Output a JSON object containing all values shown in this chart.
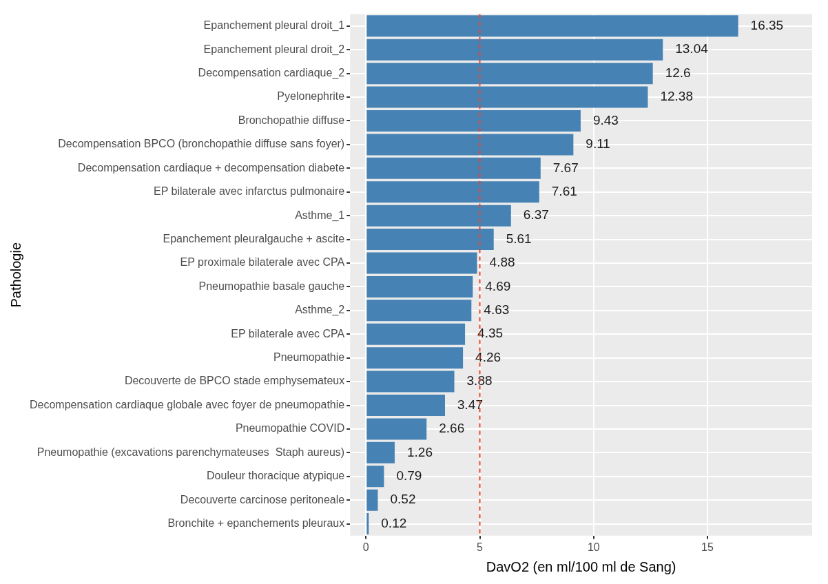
{
  "chart_data": {
    "type": "bar",
    "orientation": "horizontal",
    "xlabel": "DavO2 (en ml/100 ml de Sang)",
    "ylabel": "Pathologie",
    "categories": [
      "Epanchement pleural droit_1",
      "Epanchement pleural droit_2",
      "Decompensation cardiaque_2",
      "Pyelonephrite",
      "Bronchopathie diffuse",
      "Decompensation BPCO (bronchopathie diffuse sans foyer)",
      "Decompensation cardiaque + decompensation diabete",
      "EP bilaterale avec infarctus pulmonaire",
      "Asthme_1",
      "Epanchement pleuralgauche + ascite",
      "EP proximale bilaterale avec CPA",
      "Pneumopathie basale gauche",
      "Asthme_2",
      "EP bilaterale avec CPA",
      "Pneumopathie",
      "Decouverte de BPCO stade emphysemateux",
      "Decompensation cardiaque globale avec foyer de pneumopathie",
      "Pneumopathie COVID",
      "Pneumopathie (excavations parenchymateuses  Staph aureus)",
      "Douleur thoracique atypique",
      "Decouverte carcinose peritoneale",
      "Bronchite + epanchements pleuraux"
    ],
    "values": [
      16.35,
      13.04,
      12.6,
      12.38,
      9.43,
      9.11,
      7.67,
      7.61,
      6.37,
      5.61,
      4.88,
      4.69,
      4.63,
      4.35,
      4.26,
      3.88,
      3.47,
      2.66,
      1.26,
      0.79,
      0.52,
      0.12
    ],
    "color": "#4682b4",
    "data_labels": true,
    "xlim": [
      -0.7,
      19.6
    ],
    "xticks": [
      0,
      5,
      10,
      15
    ],
    "grid": true,
    "ref_lines": [
      {
        "axis": "x",
        "value": 5,
        "color": "#e8452c",
        "line_style": "dashed"
      }
    ]
  }
}
